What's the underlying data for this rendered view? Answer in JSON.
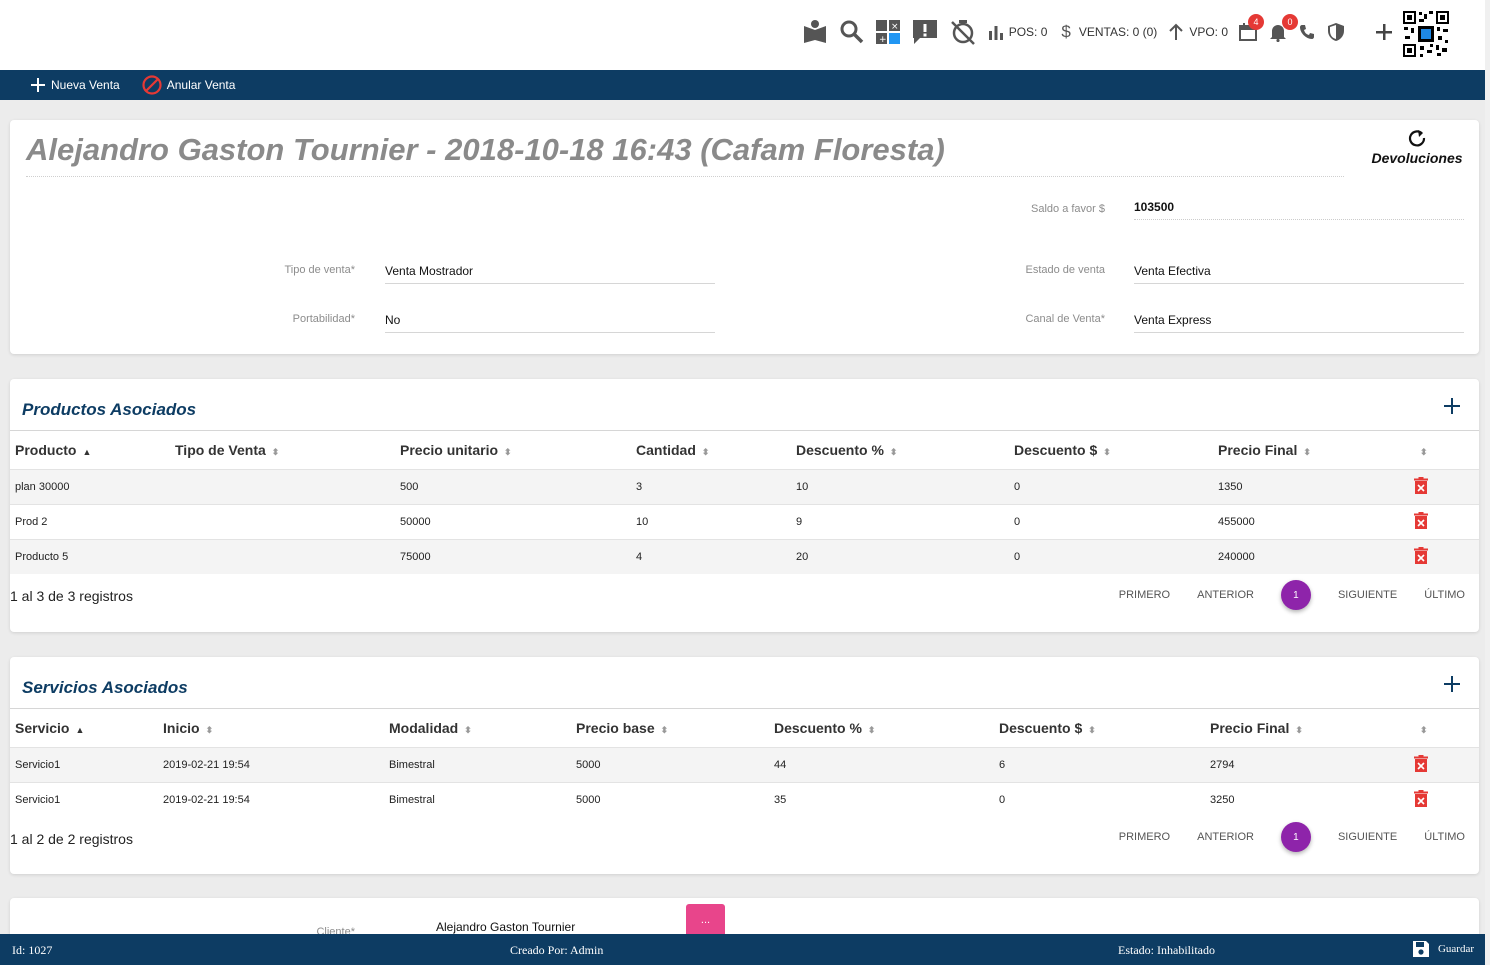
{
  "topbar": {
    "pos": "POS: 0",
    "ventas": "VENTAS: 0 (0)",
    "vpo": "VPO: 0",
    "calendar_badge": "4",
    "bell_badge": "0"
  },
  "actions": {
    "nueva_venta": "Nueva Venta",
    "anular_venta": "Anular Venta"
  },
  "header": {
    "title": "Alejandro Gaston Tournier - 2018-10-18 16:43 (Cafam Floresta)",
    "devoluciones": "Devoluciones"
  },
  "form": {
    "saldo_label": "Saldo a favor $",
    "saldo_value": "103500",
    "tipo_label": "Tipo de venta*",
    "tipo_value": "Venta Mostrador",
    "estado_label": "Estado de venta",
    "estado_value": "Venta Efectiva",
    "portabilidad_label": "Portabilidad*",
    "portabilidad_value": "No",
    "canal_label": "Canal de Venta*",
    "canal_value": "Venta Express"
  },
  "productos": {
    "title": "Productos Asociados",
    "columns": [
      "Producto",
      "Tipo de Venta",
      "Precio unitario",
      "Cantidad",
      "Descuento %",
      "Descuento $",
      "Precio Final"
    ],
    "rows": [
      [
        "plan 30000",
        "",
        "500",
        "3",
        "10",
        "0",
        "1350"
      ],
      [
        "Prod 2",
        "",
        "50000",
        "10",
        "9",
        "0",
        "455000"
      ],
      [
        "Producto 5",
        "",
        "75000",
        "4",
        "20",
        "0",
        "240000"
      ]
    ],
    "registros": "1 al 3 de 3 registros"
  },
  "servicios": {
    "title": "Servicios Asociados",
    "columns": [
      "Servicio",
      "Inicio",
      "Modalidad",
      "Precio base",
      "Descuento %",
      "Descuento $",
      "Precio Final"
    ],
    "rows": [
      [
        "Servicio1",
        "2019-02-21 19:54",
        "Bimestral",
        "5000",
        "44",
        "6",
        "2794"
      ],
      [
        "Servicio1",
        "2019-02-21 19:54",
        "Bimestral",
        "5000",
        "35",
        "0",
        "3250"
      ]
    ],
    "registros": "1 al 2 de 2 registros"
  },
  "pager": {
    "primero": "PRIMERO",
    "anterior": "ANTERIOR",
    "page": "1",
    "siguiente": "SIGUIENTE",
    "ultimo": "ÚLTIMO"
  },
  "cliente": {
    "label": "Cliente*",
    "value": "Alejandro Gaston Tournier",
    "button": "..."
  },
  "footer": {
    "id": "Id: 1027",
    "creado": "Creado Por: Admin",
    "estado": "Estado: Inhabilitado",
    "guardar": "Guardar"
  },
  "colors": {
    "navy": "#0d3c63",
    "purple": "#8e24aa",
    "pink": "#e8458b",
    "red": "#e53935"
  }
}
